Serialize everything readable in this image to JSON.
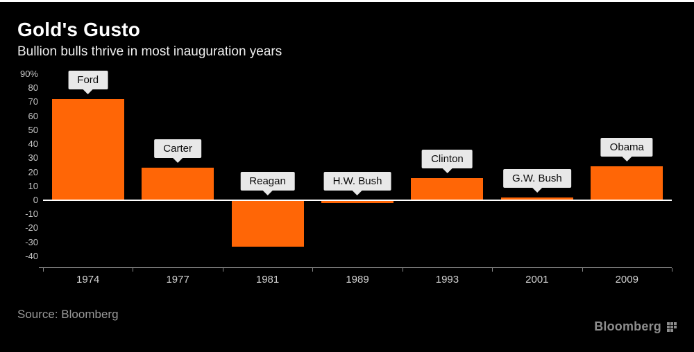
{
  "header": {
    "title": "Gold's Gusto",
    "subtitle": "Bullion bulls thrive in most inauguration years"
  },
  "footer": {
    "source_text": "Source:  Bloomberg",
    "brand": "Bloomberg"
  },
  "colors": {
    "background": "#000000",
    "bar": "#ff6606",
    "label_box": "#e8e8e8",
    "axis_text": "#c8c8c8",
    "zero_line": "#ffffff"
  },
  "chart_data": {
    "type": "bar",
    "title": "Gold's Gusto",
    "subtitle": "Bullion bulls thrive in most inauguration years",
    "categories": [
      "1974",
      "1977",
      "1981",
      "1989",
      "1993",
      "2001",
      "2009"
    ],
    "bar_labels": [
      "Ford",
      "Carter",
      "Reagan",
      "H.W. Bush",
      "Clinton",
      "G.W. Bush",
      "Obama"
    ],
    "values": [
      72,
      23,
      -33,
      -2,
      16,
      2,
      24
    ],
    "unit": "percent",
    "ylim": [
      -40,
      90
    ],
    "yticks": [
      90,
      80,
      70,
      60,
      50,
      40,
      30,
      20,
      10,
      0,
      -10,
      -20,
      -30,
      -40
    ],
    "ytick_labels": [
      "90%",
      "80",
      "70",
      "60",
      "50",
      "40",
      "30",
      "20",
      "10",
      "0",
      "-10",
      "-20",
      "-30",
      "-40"
    ],
    "grid": false,
    "legend": false
  }
}
